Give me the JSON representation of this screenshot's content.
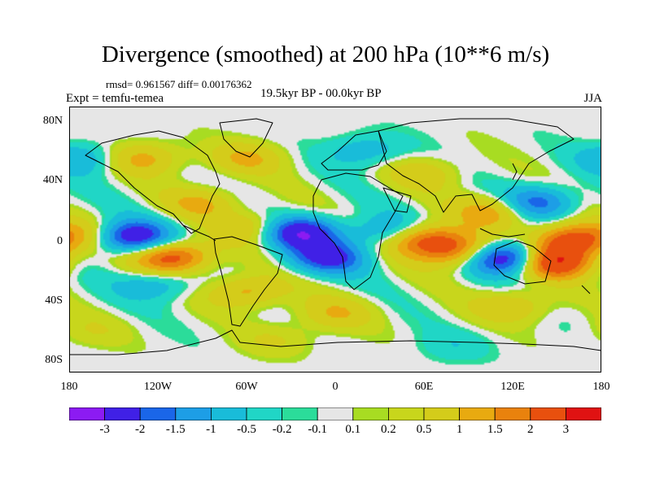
{
  "title": "Divergence (smoothed) at 200 hPa (10**6 m/s)",
  "stats_text": "rmsd= 0.961567 diff= 0.00176362",
  "experiment_text": "Expt = temfu-temea",
  "period_text": "19.5kyr BP - 00.0kyr BP",
  "season_text": "JJA",
  "lat_labels": [
    "80N",
    "40N",
    "0",
    "40S",
    "80S"
  ],
  "lon_labels": [
    "180",
    "120W",
    "60W",
    "0",
    "60E",
    "120E",
    "180"
  ],
  "colorbar": {
    "labels": [
      "-3",
      "-2",
      "-1.5",
      "-1",
      "-0.5",
      "-0.2",
      "-0.1",
      "0.1",
      "0.2",
      "0.5",
      "1",
      "1.5",
      "2",
      "3"
    ],
    "colors": [
      "#8c1bf2",
      "#4020e6",
      "#1a66e8",
      "#1d9ee6",
      "#19bcd9",
      "#20d6c6",
      "#2bdc9a",
      "#e6e6e6",
      "#a8dc22",
      "#d4cc1a",
      "#e8aa10",
      "#e9820d",
      "#e8500e",
      "#e01212"
    ]
  },
  "chart_data": {
    "type": "heatmap",
    "title": "Divergence (smoothed) at 200 hPa (10**6 m/s)",
    "variable": "Divergence (smoothed)",
    "level": "200 hPa",
    "units": "10**6 m/s",
    "experiment": "temfu-temea",
    "period": "19.5kyr BP - 00.0kyr BP",
    "season": "JJA",
    "rmsd": 0.961567,
    "diff": 0.00176362,
    "lon_range": [
      -180,
      180
    ],
    "lat_range": [
      -90,
      90
    ],
    "contour_levels": [
      -3,
      -2,
      -1.5,
      -1,
      -0.5,
      -0.2,
      -0.1,
      0.1,
      0.2,
      0.5,
      1,
      1.5,
      2,
      3
    ],
    "features": [
      {
        "lon": -140,
        "lat": 2,
        "value": -3.3
      },
      {
        "lon": -110,
        "lat": -12,
        "value": 2.5
      },
      {
        "lon": -158,
        "lat": 3,
        "value": 1.2
      },
      {
        "lon": -25,
        "lat": 5,
        "value": -3.0
      },
      {
        "lon": -50,
        "lat": 8,
        "value": 1.3
      },
      {
        "lon": -5,
        "lat": -12,
        "value": -2.2
      },
      {
        "lon": 35,
        "lat": 5,
        "value": -1.2
      },
      {
        "lon": 60,
        "lat": 0,
        "value": 2.3
      },
      {
        "lon": 85,
        "lat": -8,
        "value": 2.0
      },
      {
        "lon": 115,
        "lat": -12,
        "value": -3.3
      },
      {
        "lon": 148,
        "lat": -15,
        "value": 3.0
      },
      {
        "lon": 160,
        "lat": 0,
        "value": 2.5
      },
      {
        "lon": 110,
        "lat": 20,
        "value": 1.6
      },
      {
        "lon": 135,
        "lat": 25,
        "value": -2.0
      },
      {
        "lon": -90,
        "lat": 25,
        "value": 1.0
      },
      {
        "lon": -60,
        "lat": -35,
        "value": 1.3
      },
      {
        "lon": -120,
        "lat": -30,
        "value": -1.0
      },
      {
        "lon": -130,
        "lat": 55,
        "value": 1.2
      },
      {
        "lon": -60,
        "lat": 55,
        "value": 1.0
      },
      {
        "lon": 20,
        "lat": 60,
        "value": -0.9
      },
      {
        "lon": 0,
        "lat": -50,
        "value": 0.9
      },
      {
        "lon": 120,
        "lat": -45,
        "value": 1.0
      },
      {
        "lon": -170,
        "lat": 55,
        "value": -1.0
      },
      {
        "lon": 60,
        "lat": 45,
        "value": 0.8
      },
      {
        "lon": -165,
        "lat": -62,
        "value": 0.4
      },
      {
        "lon": -40,
        "lat": -68,
        "value": 0.5
      },
      {
        "lon": 80,
        "lat": -72,
        "value": -0.4
      }
    ]
  }
}
